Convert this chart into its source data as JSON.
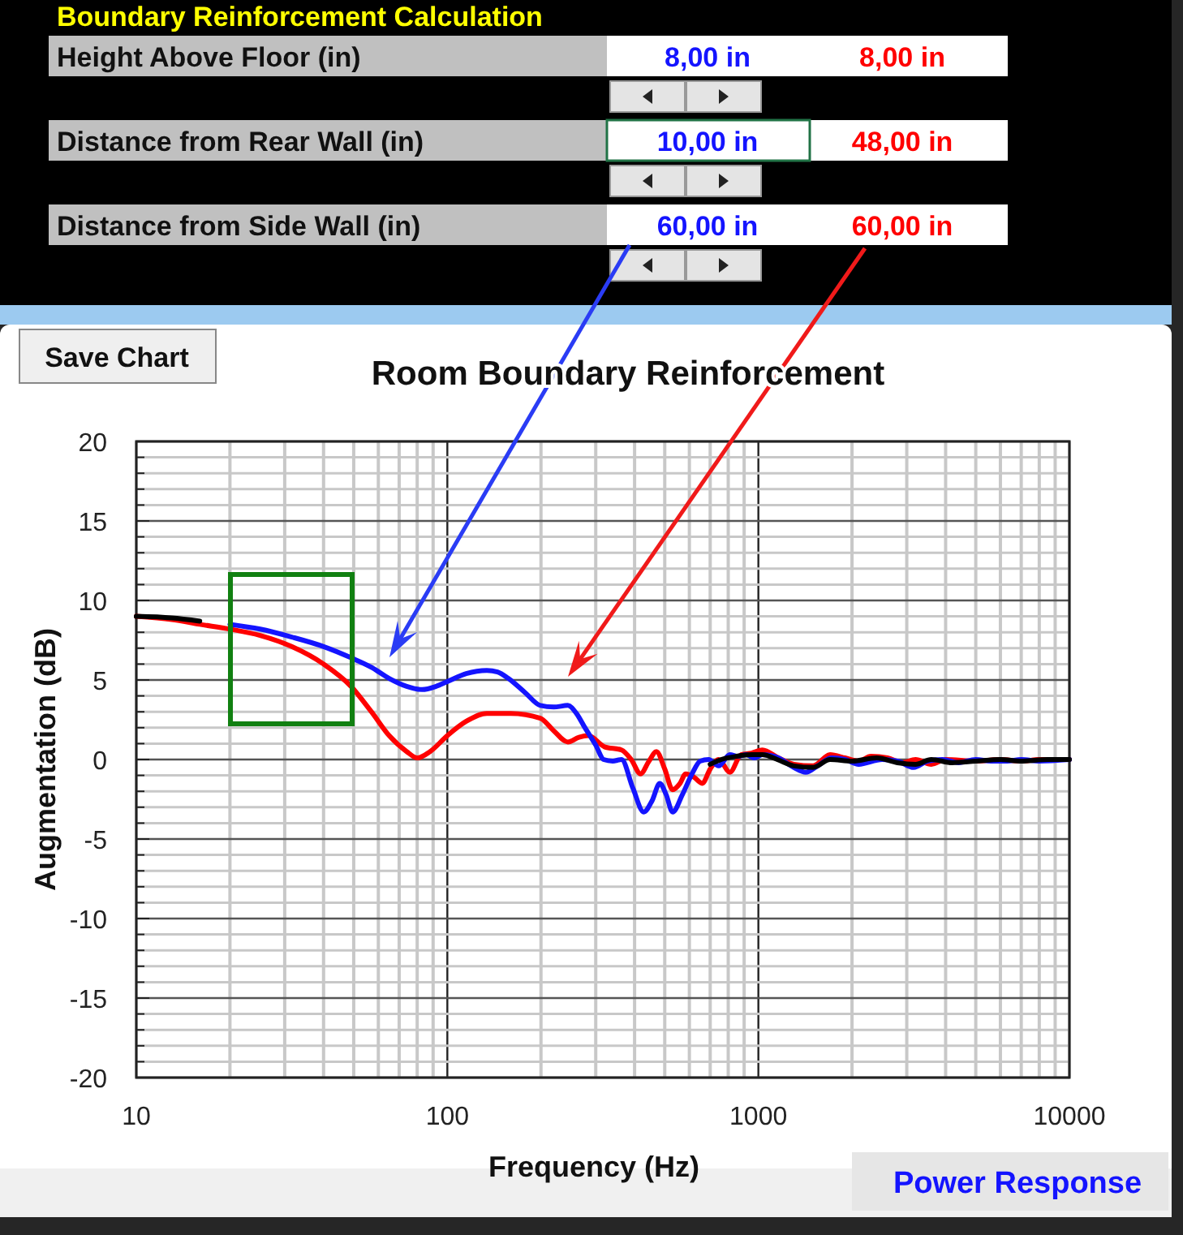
{
  "chart_data": {
    "type": "line",
    "title": "Room Boundary Reinforcement",
    "xlabel": "Frequency (Hz)",
    "ylabel": "Augmentation (dB)",
    "annotations": [
      "Boundary Reinforcement Calculation",
      "Height Above Floor (in)",
      "Distance from Rear Wall (in)",
      "Distance from Side Wall (in)",
      "8,00 in",
      "8,00 in",
      "10,00 in",
      "48,00 in",
      "60,00 in",
      "60,00 in",
      "Save Chart",
      "Power Response"
    ],
    "log": "x",
    "grid": true,
    "xlim": [
      10,
      10000
    ],
    "ylim": [
      -20,
      20
    ],
    "xticks": [
      10,
      {
        "value": 20,
        "label": null
      },
      {
        "value": 30,
        "label": null
      },
      {
        "value": 40,
        "label": null
      },
      {
        "value": 50,
        "label": null
      },
      {
        "value": 60,
        "label": null
      },
      {
        "value": 70,
        "label": null
      },
      {
        "value": 80,
        "label": null
      },
      {
        "value": 90,
        "label": null
      },
      100,
      {
        "value": 200,
        "label": null
      },
      {
        "value": 300,
        "label": null
      },
      {
        "value": 400,
        "label": null
      },
      {
        "value": 500,
        "label": null
      },
      {
        "value": 600,
        "label": null
      },
      {
        "value": 700,
        "label": null
      },
      {
        "value": 800,
        "label": null
      },
      {
        "value": 900,
        "label": null
      },
      1000,
      {
        "value": 2000,
        "label": null
      },
      {
        "value": 3000,
        "label": null
      },
      {
        "value": 4000,
        "label": null
      },
      {
        "value": 5000,
        "label": null
      },
      {
        "value": 6000,
        "label": null
      },
      {
        "value": 7000,
        "label": null
      },
      {
        "value": 8000,
        "label": null
      },
      {
        "value": 9000,
        "label": null
      },
      10000
    ],
    "yticks": [
      -20,
      {
        "value": -19,
        "label": null
      },
      {
        "value": -18,
        "label": null
      },
      {
        "value": -17,
        "label": null
      },
      {
        "value": -16,
        "label": null
      },
      -15,
      {
        "value": -14,
        "label": null
      },
      {
        "value": -13,
        "label": null
      },
      {
        "value": -12,
        "label": null
      },
      {
        "value": -11,
        "label": null
      },
      -10,
      {
        "value": -9,
        "label": null
      },
      {
        "value": -8,
        "label": null
      },
      {
        "value": -7,
        "label": null
      },
      {
        "value": -6,
        "label": null
      },
      -5,
      {
        "value": -4,
        "label": null
      },
      {
        "value": -3,
        "label": null
      },
      {
        "value": -2,
        "label": null
      },
      {
        "value": -1,
        "label": null
      },
      0,
      {
        "value": 1,
        "label": null
      },
      {
        "value": 2,
        "label": null
      },
      {
        "value": 3,
        "label": null
      },
      {
        "value": 4,
        "label": null
      },
      5,
      {
        "value": 6,
        "label": null
      },
      {
        "value": 7,
        "label": null
      },
      {
        "value": 8,
        "label": null
      },
      {
        "value": 9,
        "label": null
      },
      10,
      {
        "value": 11,
        "label": null
      },
      {
        "value": 12,
        "label": null
      },
      {
        "value": 13,
        "label": null
      },
      {
        "value": 14,
        "label": null
      },
      15,
      {
        "value": 16,
        "label": null
      },
      {
        "value": 17,
        "label": null
      },
      {
        "value": 18,
        "label": null
      },
      {
        "value": 19,
        "label": null
      },
      20
    ],
    "series": [
      {
        "color": "#ff0000",
        "x": [
          10,
          13,
          16,
          20,
          25,
          31.6,
          40,
          49,
          57,
          65,
          74,
          80,
          88,
          100,
          115,
          134,
          160,
          199,
          220,
          244,
          265,
          284,
          320,
          363,
          390,
          418,
          445,
          470,
          500,
          530,
          560,
          584,
          620,
          660,
          700,
          745,
          810,
          880,
          950,
          1030,
          1160,
          1300,
          1500,
          1700,
          1900,
          2100,
          2300,
          2600,
          2900,
          3200,
          3600,
          4000,
          5000,
          6000,
          7000,
          8000,
          10000
        ],
        "values": [
          9.0,
          8.8,
          8.5,
          8.2,
          7.8,
          7.1,
          6.0,
          4.6,
          3.0,
          1.5,
          0.5,
          0.1,
          0.5,
          1.5,
          2.4,
          2.9,
          2.9,
          2.6,
          1.8,
          1.1,
          1.4,
          1.5,
          0.8,
          0.6,
          0,
          -0.9,
          -0.1,
          0.5,
          -0.6,
          -1.9,
          -1.5,
          -0.9,
          -1.1,
          -1.5,
          -0.6,
          0,
          -0.8,
          0.3,
          0.4,
          0.6,
          0.1,
          -0.3,
          -0.4,
          0.3,
          0.1,
          -0.1,
          0.2,
          0.1,
          -0.2,
          0,
          -0.3,
          0,
          -0.1,
          0,
          -0.1,
          0,
          0
        ]
      },
      {
        "color": "#1414ff",
        "x": [
          20,
          25,
          31.6,
          40,
          49,
          57,
          65,
          74,
          83,
          92,
          100,
          115,
          134,
          145,
          157,
          178,
          199,
          220,
          244,
          260,
          275,
          300,
          318,
          340,
          363,
          395,
          428,
          455,
          482,
          505,
          530,
          570,
          612,
          650,
          692,
          745,
          810,
          860,
          915,
          970,
          1030,
          1160,
          1300,
          1420,
          1550,
          1720,
          1900,
          2100,
          2500,
          2800,
          3160,
          3500,
          3900,
          4400,
          5000,
          5600,
          6300,
          7000,
          8000,
          10000
        ],
        "values": [
          8.5,
          8.2,
          7.7,
          7.1,
          6.4,
          5.8,
          5.1,
          4.6,
          4.4,
          4.6,
          4.9,
          5.4,
          5.6,
          5.5,
          5.1,
          4.2,
          3.4,
          3.3,
          3.4,
          2.9,
          2.1,
          0.9,
          0,
          -0.1,
          0,
          -1.8,
          -3.3,
          -2.6,
          -1.5,
          -2.2,
          -3.3,
          -2.2,
          -0.9,
          -0.1,
          0,
          -0.4,
          0.3,
          0.2,
          0.3,
          0.1,
          0.3,
          0.1,
          -0.5,
          -0.8,
          -0.4,
          0.1,
          0,
          -0.3,
          0,
          -0.1,
          -0.5,
          -0.1,
          0,
          -0.2,
          0,
          -0.1,
          -0.1,
          0,
          -0.1,
          0
        ]
      },
      {
        "color": "#000000",
        "x": [
          10,
          13,
          16,
          25,
          700,
          760,
          850,
          950,
          1030,
          1150,
          1300,
          1500,
          1700,
          2000,
          2400,
          2800,
          3200,
          3600,
          4200,
          5000,
          6000,
          7000,
          8500,
          10000
        ],
        "values": [
          9.0,
          8.9,
          8.7,
          null,
          -0.3,
          0,
          0.2,
          0.3,
          0.3,
          0,
          -0.4,
          -0.5,
          0,
          -0.1,
          0.1,
          -0.2,
          -0.3,
          0,
          -0.2,
          -0.1,
          0,
          -0.1,
          0,
          0
        ]
      }
    ]
  }
}
